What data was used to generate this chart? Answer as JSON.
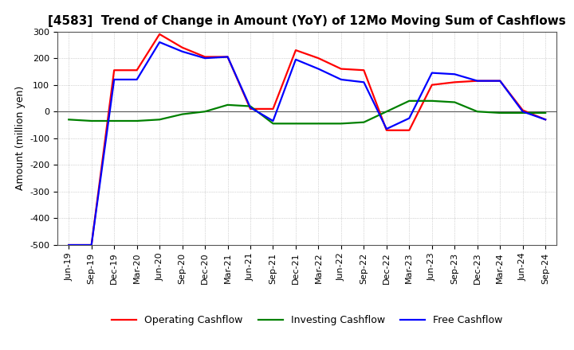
{
  "title": "[4583]  Trend of Change in Amount (YoY) of 12Mo Moving Sum of Cashflows",
  "ylabel": "Amount (million yen)",
  "xlabels": [
    "Jun-19",
    "Sep-19",
    "Dec-19",
    "Mar-20",
    "Jun-20",
    "Sep-20",
    "Dec-20",
    "Mar-21",
    "Jun-21",
    "Sep-21",
    "Dec-21",
    "Mar-22",
    "Jun-22",
    "Sep-22",
    "Dec-22",
    "Mar-23",
    "Jun-23",
    "Sep-23",
    "Dec-23",
    "Mar-24",
    "Jun-24",
    "Sep-24"
  ],
  "operating": [
    -500,
    -500,
    155,
    155,
    290,
    240,
    205,
    205,
    10,
    10,
    230,
    200,
    160,
    155,
    -70,
    -70,
    100,
    110,
    115,
    115,
    5,
    -30
  ],
  "investing": [
    -30,
    -35,
    -35,
    -35,
    -30,
    -10,
    0,
    25,
    20,
    -45,
    -45,
    -45,
    -45,
    -40,
    0,
    40,
    40,
    35,
    0,
    -5,
    -5,
    -5
  ],
  "free": [
    -500,
    -500,
    120,
    120,
    260,
    225,
    200,
    205,
    15,
    -35,
    195,
    160,
    120,
    110,
    -65,
    -25,
    145,
    140,
    115,
    115,
    0,
    -30
  ],
  "operating_color": "#FF0000",
  "investing_color": "#008000",
  "free_color": "#0000FF",
  "ylim": [
    -500,
    300
  ],
  "yticks": [
    -500,
    -400,
    -300,
    -200,
    -100,
    0,
    100,
    200,
    300
  ],
  "background_color": "#FFFFFF",
  "grid_color": "#B0B0B0",
  "linewidth": 1.6,
  "title_fontsize": 11,
  "axis_fontsize": 8,
  "ylabel_fontsize": 9
}
